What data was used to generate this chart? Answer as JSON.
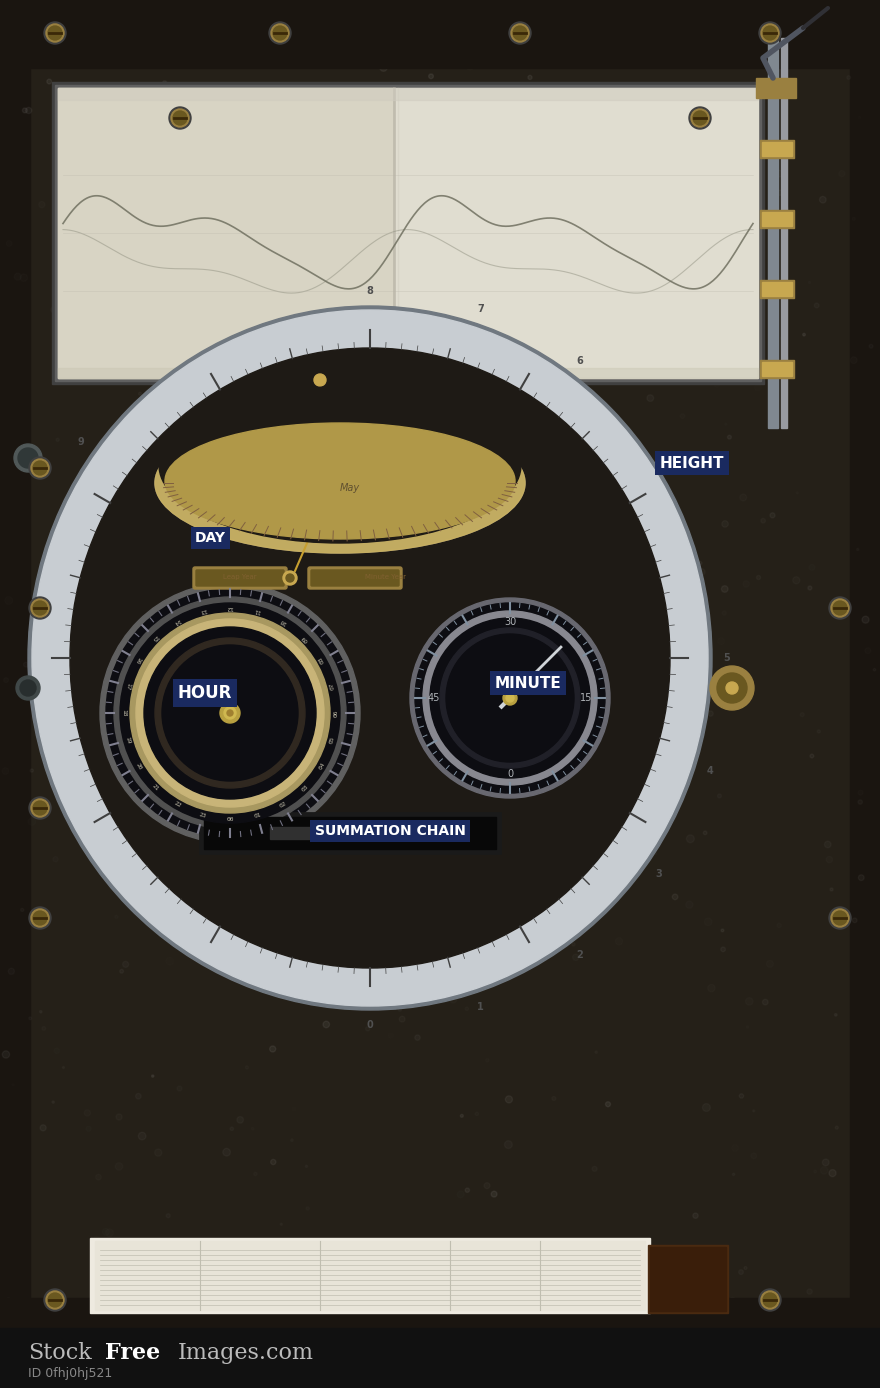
{
  "bg_color": "#2a2520",
  "machine_dark": "#1e1a15",
  "machine_mid": "#2d2820",
  "machine_light": "#383028",
  "silver_ring": "#9a9fa5",
  "silver_light": "#c8cdd2",
  "silver_dark": "#707880",
  "brass_color": "#9a8040",
  "brass_light": "#c8a850",
  "brass_dark": "#6a5820",
  "paper_white": "#e0ddd0",
  "paper_cream": "#d8d4c4",
  "paper_shadow": "#c8c4b0",
  "hour_bg": "#18181a",
  "hour_ring_color": "#888070",
  "min_bg": "#18181a",
  "label_bg": "#1a2a60",
  "label_text": "#ffffff",
  "wm_bg": "#111111",
  "wm_regular": "#bbbbbb",
  "wm_bold": "#ffffff",
  "wm_sub": "#888888",
  "labels": [
    "HEIGHT",
    "DAY",
    "HOUR",
    "MINUTE",
    "SUMMATION CHAIN"
  ],
  "fig_w": 8.8,
  "fig_h": 13.88
}
